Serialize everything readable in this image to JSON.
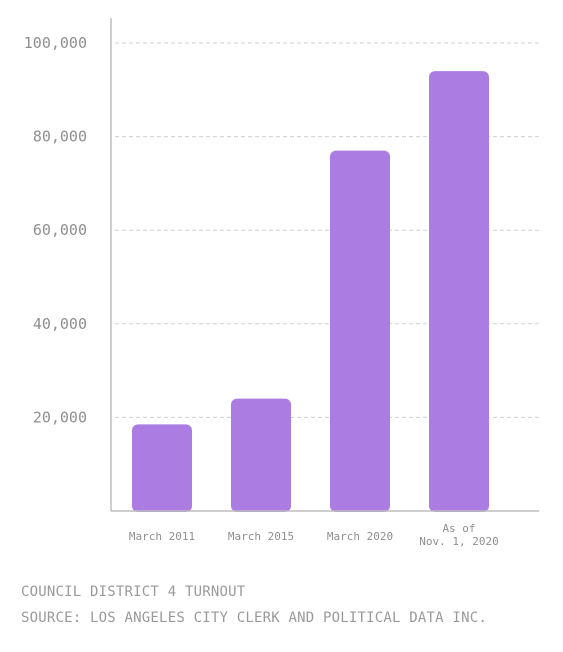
{
  "chart_data": {
    "type": "bar",
    "title": "",
    "xlabel": "",
    "ylabel": "",
    "categories": [
      [
        "March 2011"
      ],
      [
        "March 2015"
      ],
      [
        "March 2020"
      ],
      [
        "As of",
        "Nov. 1, 2020"
      ]
    ],
    "values": [
      18500,
      24000,
      77000,
      94000
    ],
    "ylim": [
      0,
      105000
    ],
    "yticks": [
      20000,
      40000,
      60000,
      80000,
      100000
    ],
    "ytick_labels": [
      "20,000",
      "40,000",
      "60,000",
      "80,000",
      "100,000"
    ],
    "grid": true,
    "bar_color": "#ab7de3",
    "grid_color": "#cfcfcf",
    "axis_color": "#bdbdbd"
  },
  "footer": {
    "line1": "COUNCIL DISTRICT 4 TURNOUT",
    "line2": "SOURCE: LOS ANGELES CITY CLERK AND POLITICAL DATA INC."
  }
}
